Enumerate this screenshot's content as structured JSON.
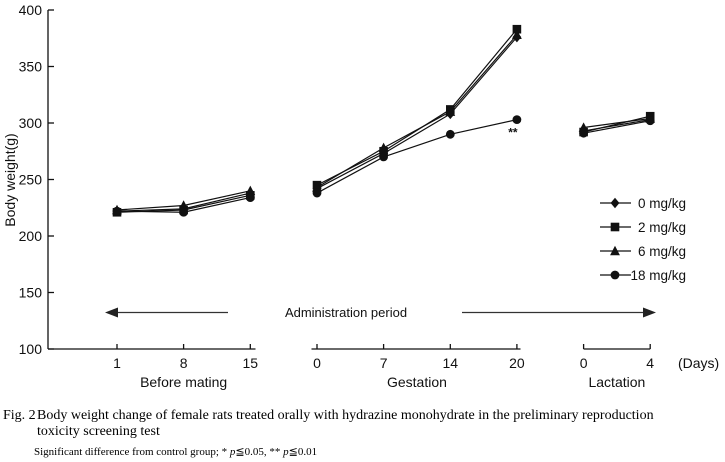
{
  "figure": {
    "fig_label": "Fig. 2",
    "caption_line1": "Body weight change of female rats treated orally with hydrazine monohydrate in the preliminary reproduction",
    "caption_line2": "toxicity screening test",
    "footnote_parts": [
      "Significant difference from control group; * ",
      "p",
      "≦0.05, ** ",
      "p",
      "≦0.01"
    ]
  },
  "chart_data": {
    "type": "line",
    "title": "",
    "ylabel": "Body weight(g)",
    "ylim": [
      100,
      400
    ],
    "yticks": [
      100,
      150,
      200,
      250,
      300,
      350,
      400
    ],
    "x_unit_label": "(Days)",
    "grid": false,
    "legend_position": "right-middle",
    "admin_period_label": "Administration period",
    "sections": [
      {
        "label": "Before mating",
        "ticks": [
          "1",
          "8",
          "15"
        ]
      },
      {
        "label": "Gestation",
        "ticks": [
          "0",
          "7",
          "14",
          "20"
        ]
      },
      {
        "label": "Lactation",
        "ticks": [
          "0",
          "4"
        ]
      }
    ],
    "series": [
      {
        "name": "0 mg/kg",
        "marker": "diamond",
        "segments": [
          [
            222,
            224,
            238
          ],
          [
            242,
            273,
            308,
            376
          ],
          [
            293,
            303
          ]
        ]
      },
      {
        "name": "2 mg/kg",
        "marker": "square",
        "segments": [
          [
            221,
            223,
            236
          ],
          [
            245,
            275,
            312,
            383
          ],
          [
            292,
            306
          ]
        ]
      },
      {
        "name": "6 mg/kg",
        "marker": "triangle",
        "segments": [
          [
            223,
            227,
            240
          ],
          [
            243,
            278,
            310,
            378
          ],
          [
            296,
            304
          ]
        ]
      },
      {
        "name": "18 mg/kg",
        "marker": "circle",
        "segments": [
          [
            222,
            221,
            234
          ],
          [
            238,
            270,
            290,
            303
          ],
          [
            291,
            302
          ]
        ]
      }
    ],
    "annotation": {
      "text": "**",
      "series": "18 mg/kg",
      "section": "Gestation",
      "tick": "20"
    }
  }
}
